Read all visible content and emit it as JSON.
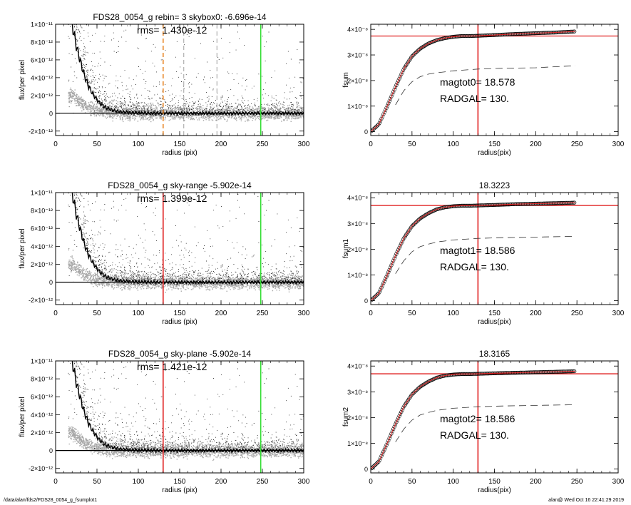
{
  "footer": {
    "path": "/data/alan/fds2/FDS28_0054_g_fsumplot1",
    "stamp": "alan@  Wed Oct 16 22:41:29 2019"
  },
  "chart_data": [
    {
      "type": "scatter",
      "title": "FDS28_0054_g rebin= 3    skybox0: -6.696e-14",
      "annotation": "rms= 1.430e-12",
      "xlabel": "radius (pix)",
      "ylabel": "flux/per pixel",
      "xlim": [
        0,
        300
      ],
      "ylim": [
        -2.5e-12,
        1e-11
      ],
      "x_ticks": [
        0,
        50,
        100,
        150,
        200,
        250,
        300
      ],
      "y_tick_labels": [
        "-2×10⁻¹²",
        "0",
        "2×10⁻¹²",
        "4×10⁻¹²",
        "6×10⁻¹²",
        "8×10⁻¹²",
        "1×10⁻¹¹"
      ],
      "y_tick_values": [
        -2e-12,
        0,
        2e-12,
        4e-12,
        6e-12,
        8e-12,
        1e-11
      ],
      "profile": {
        "x": [
          20,
          25,
          30,
          35,
          40,
          45,
          50,
          55,
          60,
          70,
          80,
          90,
          100,
          120,
          150,
          200,
          250,
          300
        ],
        "y": [
          1e-11,
          7.6e-12,
          5.8e-12,
          4.2e-12,
          3e-12,
          2.2e-12,
          1.5e-12,
          1e-12,
          6.5e-13,
          3e-13,
          1.5e-13,
          8e-14,
          4e-14,
          1e-14,
          0,
          0,
          0,
          0
        ]
      },
      "vlines": [
        {
          "x": 130,
          "color": "#e8882a",
          "style": "dashed"
        },
        {
          "x": 248,
          "color": "#33dd33",
          "style": "solid"
        }
      ],
      "extra_dashes": [
        155,
        195
      ]
    },
    {
      "type": "line",
      "title": "",
      "annotations": [
        "magtot0=  18.578",
        "RADGAL=     130."
      ],
      "xlabel": "radius(pix)",
      "ylabel": "fsum",
      "xlim": [
        0,
        300
      ],
      "ylim": [
        -1.5e-09,
        4.2e-08
      ],
      "x_ticks": [
        0,
        50,
        100,
        150,
        200,
        250,
        300
      ],
      "y_tick_labels": [
        "0",
        "1×10⁻⁸",
        "2×10⁻⁸",
        "3×10⁻⁸",
        "4×10⁻⁸"
      ],
      "y_tick_values": [
        0,
        1e-08,
        2e-08,
        3e-08,
        4e-08
      ],
      "curve": {
        "x": [
          0,
          10,
          20,
          30,
          40,
          50,
          60,
          70,
          80,
          90,
          100,
          110,
          120,
          130,
          150,
          175,
          200,
          225,
          248
        ],
        "y": [
          0,
          3e-09,
          1e-08,
          1.75e-08,
          2.45e-08,
          2.95e-08,
          3.25e-08,
          3.45e-08,
          3.58e-08,
          3.66e-08,
          3.71e-08,
          3.74e-08,
          3.74e-08,
          3.75e-08,
          3.78e-08,
          3.82e-08,
          3.85e-08,
          3.88e-08,
          3.92e-08
        ]
      },
      "dashed_curve": {
        "x": [
          30,
          40,
          50,
          60,
          70,
          80,
          100,
          130,
          160,
          200,
          248
        ],
        "y": [
          1.05e-08,
          1.6e-08,
          1.95e-08,
          2.15e-08,
          2.25e-08,
          2.3e-08,
          2.38e-08,
          2.45e-08,
          2.48e-08,
          2.5e-08,
          2.58e-08
        ]
      },
      "hline": {
        "y": 3.74e-08,
        "color": "#e02020"
      },
      "vline": {
        "x": 130,
        "color": "#e02020"
      }
    },
    {
      "type": "scatter",
      "title": "FDS28_0054_g sky-range -5.902e-14",
      "annotation": "rms= 1.399e-12",
      "xlabel": "radius (pix)",
      "ylabel": "flux/per pixel",
      "xlim": [
        0,
        300
      ],
      "ylim": [
        -2.5e-12,
        1e-11
      ],
      "x_ticks": [
        0,
        50,
        100,
        150,
        200,
        250,
        300
      ],
      "y_tick_labels": [
        "-2×10⁻¹²",
        "0",
        "2×10⁻¹²",
        "4×10⁻¹²",
        "6×10⁻¹²",
        "8×10⁻¹²",
        "1×10⁻¹¹"
      ],
      "y_tick_values": [
        -2e-12,
        0,
        2e-12,
        4e-12,
        6e-12,
        8e-12,
        1e-11
      ],
      "profile": {
        "x": [
          20,
          25,
          30,
          35,
          40,
          45,
          50,
          55,
          60,
          70,
          80,
          90,
          100,
          120,
          150,
          200,
          250,
          300
        ],
        "y": [
          1e-11,
          7.6e-12,
          5.8e-12,
          4.2e-12,
          3e-12,
          2.2e-12,
          1.5e-12,
          1e-12,
          6.5e-13,
          3e-13,
          1.5e-13,
          8e-14,
          4e-14,
          1e-14,
          0,
          0,
          0,
          0
        ]
      },
      "vlines": [
        {
          "x": 130,
          "color": "#e02020",
          "style": "solid"
        },
        {
          "x": 248,
          "color": "#33dd33",
          "style": "solid"
        }
      ],
      "extra_dashes": []
    },
    {
      "type": "line",
      "title": "18.3223",
      "annotations": [
        "magtot1=  18.586",
        "RADGAL=     130."
      ],
      "xlabel": "radius(pix)",
      "ylabel": "fsum1",
      "xlim": [
        0,
        300
      ],
      "ylim": [
        -1.5e-09,
        4.2e-08
      ],
      "x_ticks": [
        0,
        50,
        100,
        150,
        200,
        250,
        300
      ],
      "y_tick_labels": [
        "0",
        "1×10⁻⁸",
        "2×10⁻⁸",
        "3×10⁻⁸",
        "4×10⁻⁸"
      ],
      "y_tick_values": [
        0,
        1e-08,
        2e-08,
        3e-08,
        4e-08
      ],
      "curve": {
        "x": [
          0,
          10,
          20,
          30,
          40,
          50,
          60,
          70,
          80,
          90,
          100,
          110,
          120,
          130,
          150,
          175,
          200,
          225,
          248
        ],
        "y": [
          0,
          3e-09,
          1e-08,
          1.75e-08,
          2.42e-08,
          2.9e-08,
          3.2e-08,
          3.4e-08,
          3.55e-08,
          3.63e-08,
          3.67e-08,
          3.69e-08,
          3.69e-08,
          3.7e-08,
          3.72e-08,
          3.75e-08,
          3.77e-08,
          3.79e-08,
          3.81e-08
        ]
      },
      "dashed_curve": {
        "x": [
          30,
          40,
          50,
          60,
          70,
          80,
          100,
          130,
          160,
          200,
          248
        ],
        "y": [
          1.05e-08,
          1.55e-08,
          1.9e-08,
          2.1e-08,
          2.2e-08,
          2.28e-08,
          2.36e-08,
          2.42e-08,
          2.45e-08,
          2.47e-08,
          2.5e-08
        ]
      },
      "hline": {
        "y": 3.7e-08,
        "color": "#e02020"
      },
      "vline": {
        "x": 130,
        "color": "#e02020"
      }
    },
    {
      "type": "scatter",
      "title": "FDS28_0054_g sky-plane -5.902e-14",
      "annotation": "rms= 1.421e-12",
      "xlabel": "radius (pix)",
      "ylabel": "flux/per pixel",
      "xlim": [
        0,
        300
      ],
      "ylim": [
        -2.5e-12,
        1e-11
      ],
      "x_ticks": [
        0,
        50,
        100,
        150,
        200,
        250,
        300
      ],
      "y_tick_labels": [
        "-2×10⁻¹²",
        "0",
        "2×10⁻¹²",
        "4×10⁻¹²",
        "6×10⁻¹²",
        "8×10⁻¹²",
        "1×10⁻¹¹"
      ],
      "y_tick_values": [
        -2e-12,
        0,
        2e-12,
        4e-12,
        6e-12,
        8e-12,
        1e-11
      ],
      "profile": {
        "x": [
          20,
          25,
          30,
          35,
          40,
          45,
          50,
          55,
          60,
          70,
          80,
          90,
          100,
          120,
          150,
          200,
          250,
          300
        ],
        "y": [
          1e-11,
          7.6e-12,
          5.8e-12,
          4.2e-12,
          3e-12,
          2.2e-12,
          1.5e-12,
          1e-12,
          6.5e-13,
          3e-13,
          1.5e-13,
          8e-14,
          4e-14,
          1e-14,
          0,
          0,
          0,
          0
        ]
      },
      "vlines": [
        {
          "x": 130,
          "color": "#e02020",
          "style": "solid"
        },
        {
          "x": 248,
          "color": "#33dd33",
          "style": "solid"
        }
      ],
      "extra_dashes": []
    },
    {
      "type": "line",
      "title": "18.3165",
      "annotations": [
        "magtot2=  18.586",
        "RADGAL=     130."
      ],
      "xlabel": "radius(pix)",
      "ylabel": "fsum2",
      "xlim": [
        0,
        300
      ],
      "ylim": [
        -1.5e-09,
        4.2e-08
      ],
      "x_ticks": [
        0,
        50,
        100,
        150,
        200,
        250,
        300
      ],
      "y_tick_labels": [
        "0",
        "1×10⁻⁸",
        "2×10⁻⁸",
        "3×10⁻⁸",
        "4×10⁻⁸"
      ],
      "y_tick_values": [
        0,
        1e-08,
        2e-08,
        3e-08,
        4e-08
      ],
      "curve": {
        "x": [
          0,
          10,
          20,
          30,
          40,
          50,
          60,
          70,
          80,
          90,
          100,
          110,
          120,
          130,
          150,
          175,
          200,
          225,
          248
        ],
        "y": [
          0,
          3e-09,
          1e-08,
          1.75e-08,
          2.42e-08,
          2.9e-08,
          3.2e-08,
          3.4e-08,
          3.55e-08,
          3.63e-08,
          3.67e-08,
          3.69e-08,
          3.69e-08,
          3.7e-08,
          3.72e-08,
          3.74e-08,
          3.76e-08,
          3.78e-08,
          3.8e-08
        ]
      },
      "dashed_curve": {
        "x": [
          30,
          40,
          50,
          60,
          70,
          80,
          100,
          130,
          160,
          200,
          248
        ],
        "y": [
          1.05e-08,
          1.55e-08,
          1.9e-08,
          2.1e-08,
          2.2e-08,
          2.28e-08,
          2.36e-08,
          2.42e-08,
          2.45e-08,
          2.47e-08,
          2.5e-08
        ]
      },
      "hline": {
        "y": 3.7e-08,
        "color": "#e02020"
      },
      "vline": {
        "x": 130,
        "color": "#e02020"
      }
    }
  ]
}
